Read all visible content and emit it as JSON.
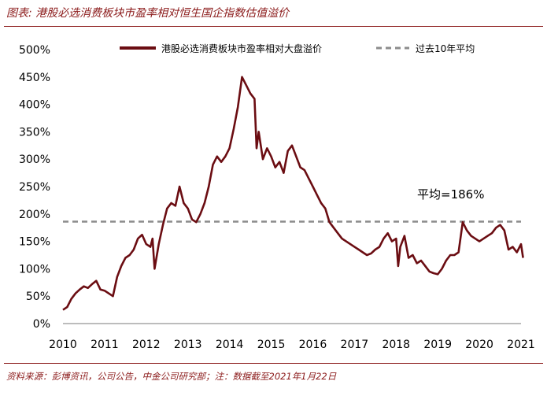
{
  "header": {
    "title": "图表: 港股必选消费板块市盈率相对恒生国企指数估值溢价"
  },
  "footer": {
    "source": "资料来源：彭博资讯，公司公告，中金公司研究部；注：数据截至2021年1月22日"
  },
  "colors": {
    "series": "#6b0d12",
    "average": "#8c8c8c",
    "accent": "#8b1a1a",
    "text": "#000000"
  },
  "chart_data": {
    "type": "line",
    "title": "",
    "xlabel": "",
    "ylabel": "",
    "xlim": [
      2010,
      2021
    ],
    "ylim": [
      0,
      5
    ],
    "x_ticks": [
      "2010",
      "2011",
      "2012",
      "2013",
      "2014",
      "2015",
      "2016",
      "2017",
      "2018",
      "2019",
      "2020",
      "2021"
    ],
    "y_ticks": [
      "0%",
      "50%",
      "100%",
      "150%",
      "200%",
      "250%",
      "300%",
      "350%",
      "400%",
      "450%",
      "500%"
    ],
    "legend_position": "top",
    "series": [
      {
        "name": "港股必选消费板块市盈率相对大盘溢价",
        "style": "solid",
        "x": [
          2010.0,
          2010.1,
          2010.2,
          2010.3,
          2010.4,
          2010.5,
          2010.6,
          2010.7,
          2010.8,
          2010.9,
          2011.0,
          2011.1,
          2011.2,
          2011.3,
          2011.4,
          2011.5,
          2011.6,
          2011.7,
          2011.8,
          2011.9,
          2012.0,
          2012.1,
          2012.15,
          2012.2,
          2012.3,
          2012.4,
          2012.5,
          2012.6,
          2012.7,
          2012.8,
          2012.9,
          2013.0,
          2013.1,
          2013.2,
          2013.3,
          2013.4,
          2013.5,
          2013.6,
          2013.7,
          2013.8,
          2013.9,
          2014.0,
          2014.1,
          2014.2,
          2014.3,
          2014.4,
          2014.5,
          2014.6,
          2014.65,
          2014.7,
          2014.8,
          2014.9,
          2015.0,
          2015.1,
          2015.2,
          2015.3,
          2015.4,
          2015.5,
          2015.6,
          2015.7,
          2015.8,
          2015.9,
          2016.0,
          2016.1,
          2016.2,
          2016.3,
          2016.4,
          2016.5,
          2016.6,
          2016.7,
          2016.8,
          2016.9,
          2017.0,
          2017.1,
          2017.2,
          2017.3,
          2017.4,
          2017.5,
          2017.6,
          2017.7,
          2017.8,
          2017.9,
          2018.0,
          2018.05,
          2018.1,
          2018.2,
          2018.3,
          2018.4,
          2018.5,
          2018.6,
          2018.7,
          2018.8,
          2018.9,
          2019.0,
          2019.1,
          2019.2,
          2019.3,
          2019.4,
          2019.5,
          2019.6,
          2019.7,
          2019.8,
          2019.9,
          2020.0,
          2020.1,
          2020.2,
          2020.3,
          2020.4,
          2020.5,
          2020.6,
          2020.7,
          2020.8,
          2020.9,
          2021.0,
          2021.05
        ],
        "y": [
          0.25,
          0.3,
          0.45,
          0.55,
          0.62,
          0.68,
          0.65,
          0.72,
          0.78,
          0.62,
          0.6,
          0.55,
          0.5,
          0.85,
          1.05,
          1.2,
          1.25,
          1.35,
          1.55,
          1.62,
          1.45,
          1.4,
          1.55,
          1.0,
          1.45,
          1.8,
          2.1,
          2.2,
          2.15,
          2.5,
          2.2,
          2.1,
          1.9,
          1.85,
          2.0,
          2.2,
          2.5,
          2.9,
          3.05,
          2.95,
          3.05,
          3.2,
          3.55,
          3.95,
          4.5,
          4.35,
          4.2,
          4.1,
          3.2,
          3.5,
          3.0,
          3.2,
          3.05,
          2.85,
          2.95,
          2.75,
          3.15,
          3.25,
          3.05,
          2.85,
          2.8,
          2.65,
          2.5,
          2.35,
          2.2,
          2.1,
          1.85,
          1.75,
          1.65,
          1.55,
          1.5,
          1.45,
          1.4,
          1.35,
          1.3,
          1.25,
          1.28,
          1.35,
          1.4,
          1.55,
          1.65,
          1.5,
          1.55,
          1.05,
          1.4,
          1.6,
          1.2,
          1.25,
          1.1,
          1.15,
          1.05,
          0.95,
          0.92,
          0.9,
          1.0,
          1.15,
          1.25,
          1.25,
          1.3,
          1.85,
          1.7,
          1.6,
          1.55,
          1.5,
          1.55,
          1.6,
          1.65,
          1.75,
          1.8,
          1.7,
          1.35,
          1.4,
          1.3,
          1.45,
          1.2
        ]
      },
      {
        "name": "过去10年平均",
        "style": "dashed",
        "x": [
          2010,
          2021
        ],
        "y": [
          1.86,
          1.86
        ]
      }
    ],
    "annotations": [
      {
        "text": "平均=186%"
      }
    ]
  }
}
